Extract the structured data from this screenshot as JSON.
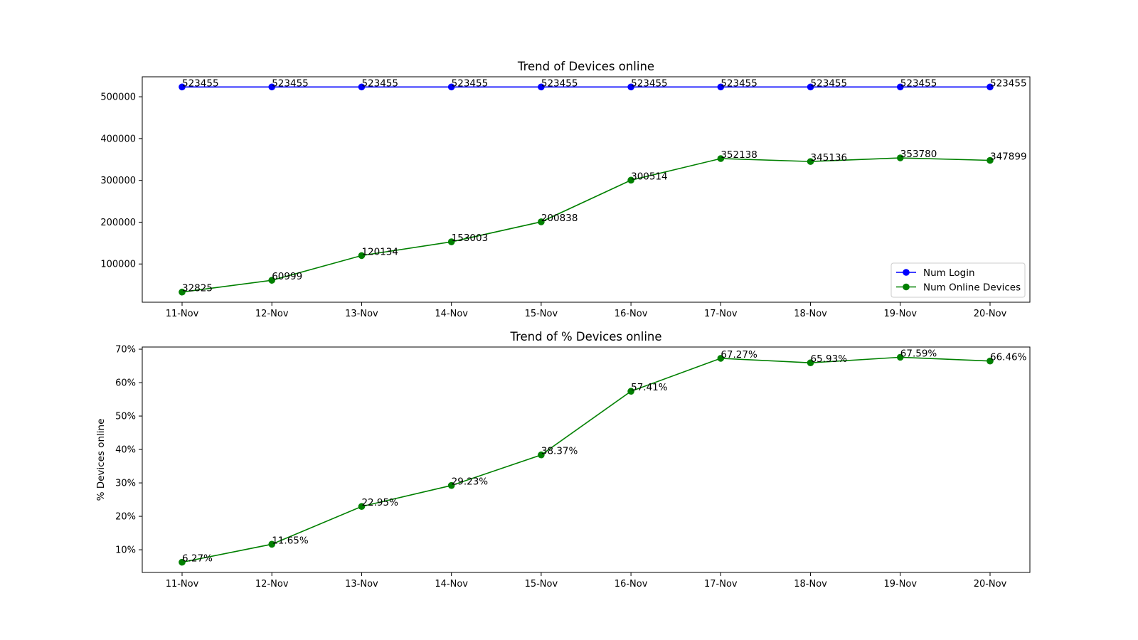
{
  "chart_data": [
    {
      "type": "line",
      "title": "Trend of Devices online",
      "xlabel": "",
      "ylabel": "",
      "categories": [
        "11-Nov",
        "12-Nov",
        "13-Nov",
        "14-Nov",
        "15-Nov",
        "16-Nov",
        "17-Nov",
        "18-Nov",
        "19-Nov",
        "20-Nov"
      ],
      "ylim": [
        8540,
        547740
      ],
      "yticks": [
        100000,
        200000,
        300000,
        400000,
        500000
      ],
      "ytick_labels": [
        "100000",
        "200000",
        "300000",
        "400000",
        "500000"
      ],
      "grid": false,
      "legend_position": "lower right",
      "series": [
        {
          "name": "Num Login",
          "color": "#0000ff",
          "values": [
            523455,
            523455,
            523455,
            523455,
            523455,
            523455,
            523455,
            523455,
            523455,
            523455
          ],
          "labels": [
            "523455",
            "523455",
            "523455",
            "523455",
            "523455",
            "523455",
            "523455",
            "523455",
            "523455",
            "523455"
          ]
        },
        {
          "name": "Num Online Devices",
          "color": "#008000",
          "values": [
            32825,
            60999,
            120134,
            153003,
            200838,
            300514,
            352138,
            345136,
            353780,
            347899
          ],
          "labels": [
            "32825",
            "60999",
            "120134",
            "153003",
            "200838",
            "300514",
            "352138",
            "345136",
            "353780",
            "347899"
          ]
        }
      ]
    },
    {
      "type": "line",
      "title": "Trend of % Devices online",
      "xlabel": "",
      "ylabel": "% Devices online",
      "categories": [
        "11-Nov",
        "12-Nov",
        "13-Nov",
        "14-Nov",
        "15-Nov",
        "16-Nov",
        "17-Nov",
        "18-Nov",
        "19-Nov",
        "20-Nov"
      ],
      "ylim": [
        3.21,
        70.65
      ],
      "yticks": [
        10,
        20,
        30,
        40,
        50,
        60,
        70
      ],
      "ytick_labels": [
        "10%",
        "20%",
        "30%",
        "40%",
        "50%",
        "60%",
        "70%"
      ],
      "grid": false,
      "series": [
        {
          "color": "#008000",
          "values": [
            6.27,
            11.65,
            22.95,
            29.23,
            38.37,
            57.41,
            67.27,
            65.93,
            67.59,
            66.46
          ],
          "labels": [
            "6.27%",
            "11.65%",
            "22.95%",
            "29.23%",
            "38.37%",
            "57.41%",
            "67.27%",
            "65.93%",
            "67.59%",
            "66.46%"
          ]
        }
      ]
    }
  ]
}
